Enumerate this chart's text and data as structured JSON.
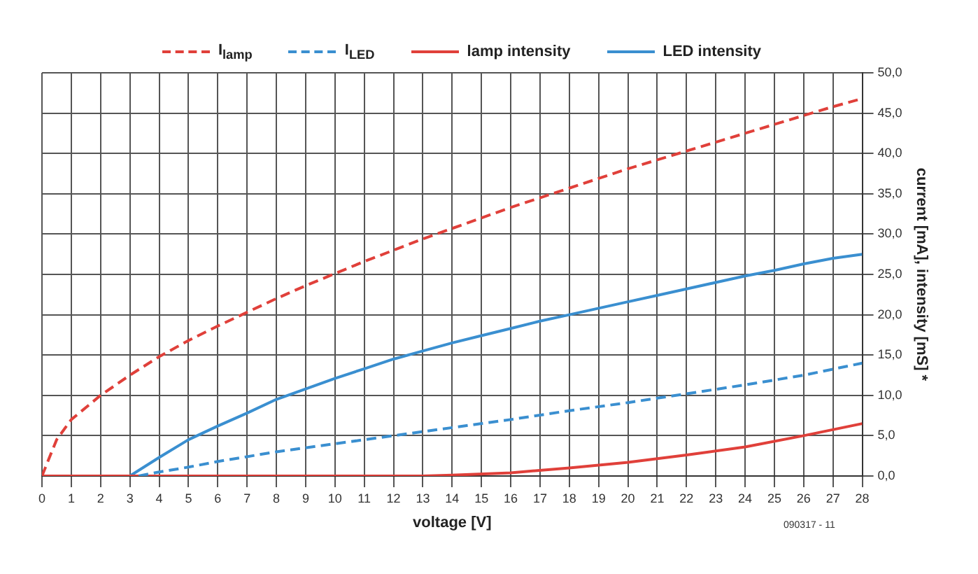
{
  "chart_data": {
    "type": "line",
    "xlabel": "voltage [V]",
    "ylabel": "current [mA], intensity [mS] *",
    "xlim": [
      0,
      28
    ],
    "xticks": [
      0,
      1,
      2,
      3,
      4,
      5,
      6,
      7,
      8,
      9,
      10,
      11,
      12,
      13,
      14,
      15,
      16,
      17,
      18,
      19,
      20,
      21,
      22,
      23,
      24,
      25,
      26,
      27,
      28
    ],
    "ylim": [
      0,
      50
    ],
    "yticks": [
      {
        "value": 0,
        "label": "0,0"
      },
      {
        "value": 5,
        "label": "5,0"
      },
      {
        "value": 10,
        "label": "10,0"
      },
      {
        "value": 15,
        "label": "15,0"
      },
      {
        "value": 20,
        "label": "20,0"
      },
      {
        "value": 25,
        "label": "25,0"
      },
      {
        "value": 30,
        "label": "30,0"
      },
      {
        "value": 35,
        "label": "35,0"
      },
      {
        "value": 40,
        "label": "40,0"
      },
      {
        "value": 45,
        "label": "45,0"
      },
      {
        "value": 50,
        "label": "50,0"
      }
    ],
    "grid": true,
    "legend": "top",
    "marker": "none",
    "annotations": [
      "090317 - 11"
    ],
    "series": [
      {
        "name": "I$_{lamp}$",
        "color": "#e0403a",
        "line_style": "dashed",
        "x": [
          0,
          0.5,
          1,
          2,
          3,
          4,
          5,
          6,
          7,
          8,
          9,
          10,
          11,
          12,
          13,
          14,
          15,
          16,
          17,
          18,
          19,
          20,
          21,
          22,
          23,
          24,
          25,
          26,
          27,
          28
        ],
        "values": [
          0,
          4.5,
          7,
          10,
          12.5,
          14.8,
          16.8,
          18.6,
          20.3,
          22,
          23.6,
          25.1,
          26.6,
          28,
          29.4,
          30.7,
          32,
          33.3,
          34.5,
          35.7,
          36.9,
          38.1,
          39.2,
          40.3,
          41.4,
          42.5,
          43.6,
          44.7,
          45.8,
          46.8
        ]
      },
      {
        "name": "I$_{LED}$",
        "color": "#3a8fd0",
        "line_style": "dashed",
        "x": [
          3.3,
          4,
          5,
          6,
          8,
          10,
          12,
          14,
          16,
          18,
          20,
          22,
          24,
          26,
          28
        ],
        "values": [
          0,
          0.5,
          1.1,
          1.8,
          3,
          4,
          5,
          6,
          7,
          8.1,
          9.1,
          10.2,
          11.3,
          12.5,
          14
        ]
      },
      {
        "name": "lamp intensity",
        "color": "#e0403a",
        "line_style": "solid",
        "x": [
          0,
          13,
          14,
          16,
          18,
          20,
          22,
          24,
          26,
          28
        ],
        "values": [
          0,
          0,
          0.1,
          0.4,
          1,
          1.7,
          2.6,
          3.6,
          5,
          6.5
        ]
      },
      {
        "name": "LED intensity",
        "color": "#3a8fd0",
        "line_style": "solid",
        "x": [
          0,
          3,
          4,
          5,
          6,
          7,
          8,
          9,
          10,
          11,
          12,
          13,
          14,
          15,
          16,
          17,
          18,
          19,
          20,
          21,
          22,
          23,
          24,
          25,
          26,
          27,
          28
        ],
        "values": [
          0,
          0,
          2.3,
          4.5,
          6.2,
          7.8,
          9.5,
          10.8,
          12.1,
          13.3,
          14.5,
          15.5,
          16.5,
          17.4,
          18.3,
          19.2,
          20,
          20.8,
          21.6,
          22.4,
          23.2,
          24,
          24.8,
          25.5,
          26.3,
          27,
          27.5
        ]
      }
    ]
  }
}
